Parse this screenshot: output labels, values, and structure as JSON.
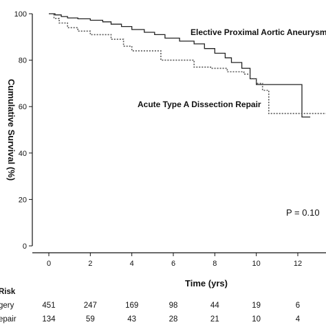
{
  "chart_data": {
    "type": "line",
    "xlabel": "Time (yrs)",
    "ylabel": "Cumulative Survival (%)",
    "xlim": [
      -1,
      14
    ],
    "ylim": [
      0,
      100
    ],
    "x_ticks": [
      0,
      2,
      4,
      6,
      8,
      10,
      12
    ],
    "y_ticks": [
      0,
      20,
      40,
      60,
      80,
      100
    ],
    "grid": false,
    "series": [
      {
        "name": "Elective Proximal Aortic Aneurysm",
        "line_style": "solid",
        "color": "#222222",
        "steps": [
          [
            0,
            100
          ],
          [
            0.3,
            99.5
          ],
          [
            0.6,
            98.8
          ],
          [
            0.9,
            98.2
          ],
          [
            1.4,
            97.8
          ],
          [
            2.0,
            97.2
          ],
          [
            2.6,
            96.5
          ],
          [
            3.0,
            95.5
          ],
          [
            3.5,
            94.5
          ],
          [
            4.0,
            93.2
          ],
          [
            4.6,
            92
          ],
          [
            5.1,
            91
          ],
          [
            5.6,
            89.5
          ],
          [
            6.3,
            88.2
          ],
          [
            7.0,
            87
          ],
          [
            7.5,
            85
          ],
          [
            8.0,
            83
          ],
          [
            8.5,
            81
          ],
          [
            8.8,
            79
          ],
          [
            9.3,
            76.5
          ],
          [
            9.7,
            72
          ],
          [
            10.0,
            69.5
          ],
          [
            11.2,
            69.5
          ],
          [
            12.2,
            55.5
          ],
          [
            12.6,
            55.5
          ]
        ]
      },
      {
        "name": "Acute Type A Dissection Repair",
        "line_style": "dotted",
        "color": "#555555",
        "steps": [
          [
            0,
            100
          ],
          [
            0.25,
            98
          ],
          [
            0.5,
            96
          ],
          [
            0.9,
            94
          ],
          [
            1.4,
            92.5
          ],
          [
            2.0,
            91
          ],
          [
            3.0,
            89
          ],
          [
            3.6,
            86
          ],
          [
            4.0,
            84
          ],
          [
            5.4,
            80
          ],
          [
            6.5,
            80
          ],
          [
            7.0,
            77
          ],
          [
            7.8,
            76.5
          ],
          [
            8.6,
            75
          ],
          [
            9.4,
            74
          ],
          [
            9.7,
            72
          ],
          [
            10.0,
            70
          ],
          [
            10.3,
            67
          ],
          [
            10.6,
            57
          ],
          [
            14,
            57
          ]
        ]
      }
    ],
    "annotations": [
      "Elective Proximal Aortic Aneurysm",
      "Acute Type A Dissection Repair",
      "P = 0.10"
    ],
    "at_risk": {
      "header": "Risk",
      "rows": [
        {
          "label": "gery",
          "values": [
            451,
            247,
            169,
            98,
            44,
            19,
            6
          ]
        },
        {
          "label": "epair",
          "values": [
            134,
            59,
            43,
            28,
            21,
            10,
            4
          ]
        }
      ]
    }
  }
}
